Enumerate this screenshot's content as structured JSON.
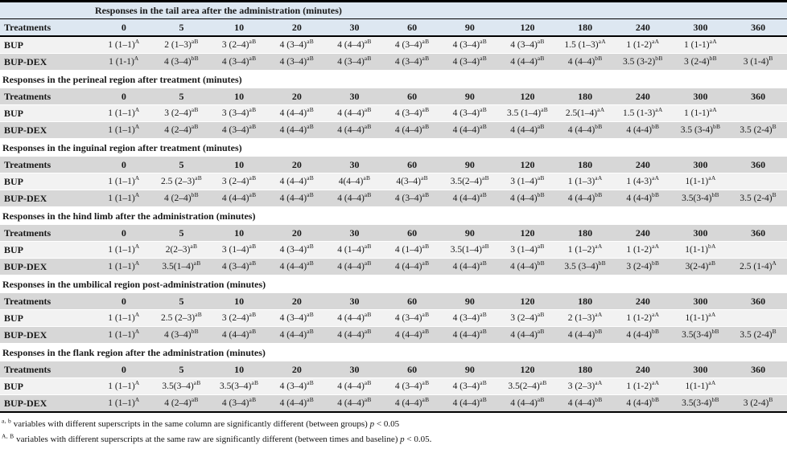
{
  "table": {
    "treatments_label": "Treatments",
    "time_columns": [
      "0",
      "5",
      "10",
      "20",
      "30",
      "60",
      "90",
      "120",
      "180",
      "240",
      "300",
      "360"
    ],
    "sections": [
      {
        "title": "Responses in the tail area after the administration (minutes)",
        "rows": [
          {
            "treatment": "BUP",
            "cells": [
              "1 (1–1)^A",
              "2 (1–3)^aB",
              "3 (2–4)^aB",
              "4 (3–4)^aB",
              "4 (4–4)^aB",
              "4 (3–4)^aB",
              "4 (3–4)^aB",
              "4 (3–4)^aB",
              "1.5 (1–3)^aA",
              "1 (1-2)^aA",
              "1 (1-1)^aA",
              ""
            ]
          },
          {
            "treatment": "BUP-DEX",
            "cells": [
              "1 (1-1)^A",
              "4 (3–4)^bB",
              "4 (3–4)^aB",
              "4 (3–4)^aB",
              "4 (3–4)^aB",
              "4 (3–4)^aB",
              "4 (3–4)^aB",
              "4 (4–4)^aB",
              "4 (4–4)^bB",
              "3.5 (3-2)^bB",
              "3 (2-4)^bB",
              "3 (1-4)^B"
            ]
          }
        ]
      },
      {
        "title": "Responses in the perineal region after treatment (minutes)",
        "rows": [
          {
            "treatment": "BUP",
            "cells": [
              "1 (1–1)^A",
              "3 (2–4)^aB",
              "3 (3–4)^aB",
              "4 (4–4)^aB",
              "4 (4–4)^aB",
              "4 (3–4)^aB",
              "4 (3–4)^aB",
              "3.5 (1–4)^aB",
              "2.5(1–4)^aA",
              "1.5 (1-3)^aA",
              "1 (1-1)^aA",
              ""
            ]
          },
          {
            "treatment": "BUP-DEX",
            "cells": [
              "1 (1–1)^A",
              "4 (2–4)^aB",
              "4 (3–4)^aB",
              "4 (4–4)^aB",
              "4 (4–4)^aB",
              "4 (4–4)^aB",
              "4 (4–4)^aB",
              "4 (4–4)^aB",
              "4 (4–4)^bB",
              "4 (4-4)^bB",
              "3.5 (3-4)^bB",
              "3.5 (2-4)^B"
            ]
          }
        ]
      },
      {
        "title": "Responses in the inguinal region after treatment (minutes)",
        "rows": [
          {
            "treatment": "BUP",
            "cells": [
              "1 (1–1)^A",
              "2.5 (2–3)^aB",
              "3 (2–4)^aB",
              "4 (4–4)^aB",
              "4(4–4)^aB",
              "4(3–4)^aB",
              "3.5(2–4)^aB",
              "3 (1–4)^aB",
              "1 (1–3)^aA",
              "1 (4-3)^aA",
              "1(1-1)^aA",
              ""
            ]
          },
          {
            "treatment": "BUP-DEX",
            "cells": [
              "1 (1–1)^A",
              "4 (2–4)^bB",
              "4 (4–4)^aB",
              "4 (4–4)^aB",
              "4 (4–4)^aB",
              "4 (3–4)^aB",
              "4 (4–4)^aB",
              "4 (4–4)^bB",
              "4 (4–4)^bB",
              "4 (4-4)^bB",
              "3.5(3-4)^bB",
              "3.5 (2-4)^B"
            ]
          }
        ]
      },
      {
        "title": "Responses in the hind limb after the administration (minutes)",
        "rows": [
          {
            "treatment": "BUP",
            "cells": [
              "1 (1–1)^A",
              "2(2–3)^aB",
              "3 (1–4)^aB",
              "4 (3–4)^aB",
              "4 (1–4)^aB",
              "4 (1–4)^aB",
              "3.5(1–4)^aB",
              "3 (1–4)^aB",
              "1 (1–2)^aA",
              "1 (1-2)^aA",
              "1(1-1)^bA",
              ""
            ]
          },
          {
            "treatment": "BUP-DEX",
            "cells": [
              "1 (1–1)^A",
              "3.5(1–4)^aB",
              "4 (3–4)^aB",
              "4 (4–4)^aB",
              "4 (4–4)^aB",
              "4 (4–4)^aB",
              "4 (4–4)^aB",
              "4 (4–4)^bB",
              "3.5 (3–4)^bB",
              "3 (2-4)^bB",
              "3(2-4)^aB",
              "2.5 (1-4)^A"
            ]
          }
        ]
      },
      {
        "title": "Responses in the umbilical region post-administration (minutes)",
        "rows": [
          {
            "treatment": "BUP",
            "cells": [
              "1 (1–1)^A",
              "2.5 (2–3)^aB",
              "3 (2–4)^aB",
              "4 (3–4)^aB",
              "4 (4–4)^aB",
              "4 (3–4)^aB",
              "4 (3–4)^aB",
              "3 (2–4)^aB",
              "2 (1–3)^aA",
              "1 (1-2)^aA",
              "1(1-1)^aA",
              ""
            ]
          },
          {
            "treatment": "BUP-DEX",
            "cells": [
              "1 (1–1)^A",
              "4 (3–4)^bB",
              "4 (4–4)^aB",
              "4 (4–4)^aB",
              "4 (4–4)^aB",
              "4 (4–4)^aB",
              "4 (4–4)^aB",
              "4 (4–4)^aB",
              "4 (4–4)^bB",
              "4 (4-4)^bB",
              "3.5(3-4)^bB",
              "3.5 (2-4)^B"
            ]
          }
        ]
      },
      {
        "title": "Responses in the flank region after the administration (minutes)",
        "rows": [
          {
            "treatment": "BUP",
            "cells": [
              "1 (1–1)^A",
              "3.5(3–4)^aB",
              "3.5(3–4)^aB",
              "4 (3–4)^aB",
              "4 (4–4)^aB",
              "4 (3–4)^aB",
              "4 (3–4)^aB",
              "3.5(2–4)^aB",
              "3 (2–3)^aA",
              "1 (1-2)^aA",
              "1(1-1)^aA",
              ""
            ]
          },
          {
            "treatment": "BUP-DEX",
            "cells": [
              "1 (1–1)^A",
              "4 (2–4)^aB",
              "4 (3–4)^aB",
              "4 (4–4)^aB",
              "4 (4–4)^aB",
              "4 (4–4)^aB",
              "4 (4–4)^aB",
              "4 (4–4)^aB",
              "4 (4–4)^bB",
              "4 (4-4)^bB",
              "3.5(3-4)^bB",
              "3 (2-4)^B"
            ]
          }
        ]
      }
    ],
    "footnotes": [
      {
        "sup": "a, b",
        "body": "variables with different superscripts in the same column are significantly different (between groups) ",
        "p_var": "p",
        "p_rest": " < 0.05"
      },
      {
        "sup": "A, B",
        "body": "variables with different superscripts at the same raw are significantly different (between times and baseline) ",
        "p_var": "p",
        "p_rest": " < 0.05."
      }
    ]
  },
  "colors": {
    "header_band": "#dde7f1",
    "gray_band": "#d7d7d7",
    "light_band": "#f2f2f2",
    "border": "#000000"
  }
}
